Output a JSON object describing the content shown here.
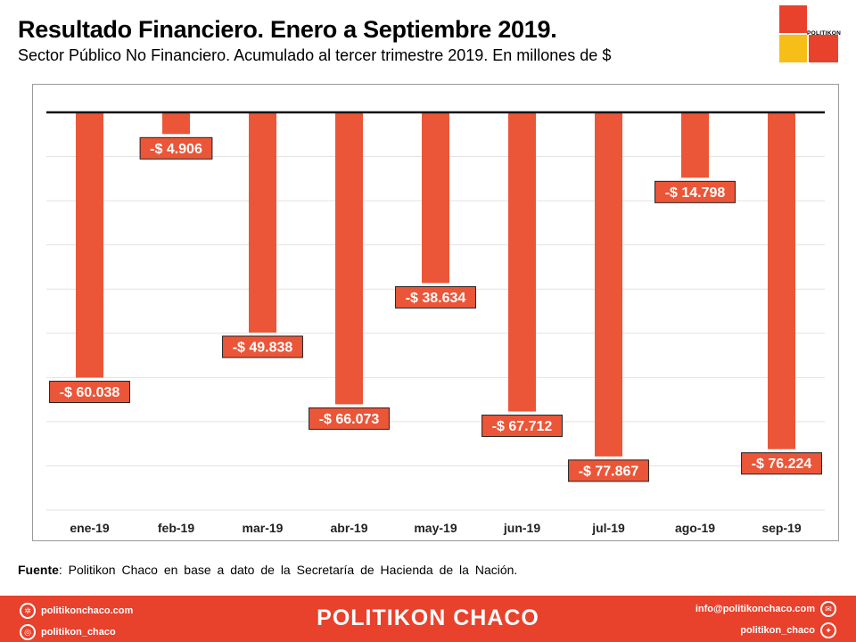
{
  "header": {
    "title": "Resultado Financiero. Enero a Septiembre 2019.",
    "subtitle": "Sector Público No Financiero. Acumulado  al tercer trimestre 2019. En millones de $"
  },
  "logo": {
    "text": "POLITIKON",
    "colors": {
      "red": "#e8412c",
      "yellow": "#f7be18"
    }
  },
  "chart_data": {
    "type": "bar",
    "categories": [
      "ene-19",
      "feb-19",
      "mar-19",
      "abr-19",
      "may-19",
      "jun-19",
      "jul-19",
      "ago-19",
      "sep-19"
    ],
    "values": [
      -60038,
      -4906,
      -49838,
      -66073,
      -38634,
      -67712,
      -77867,
      -14798,
      -76224
    ],
    "data_labels": [
      "-$ 60.038",
      "-$ 4.906",
      "-$ 49.838",
      "-$ 66.073",
      "-$ 38.634",
      "-$ 67.712",
      "-$ 77.867",
      "-$ 14.798",
      "-$ 76.224"
    ],
    "ylim": [
      -90000,
      0
    ],
    "grid": true,
    "bar_color": "#eb5638",
    "title": "",
    "xlabel": "",
    "ylabel": ""
  },
  "source": {
    "label": "Fuente",
    "text": ":  Politikon  Chaco  en  base  a  dato  de  la  Secretaría  de  Hacienda  de  la  Nación."
  },
  "footer": {
    "brand": "POLITIKON CHACO",
    "website": "politikonchaco.com",
    "instagram": "politikon_chaco",
    "email": "info@politikonchaco.com",
    "twitter": "politikon_chaco",
    "icons": {
      "website": "dribbble-icon",
      "instagram": "instagram-icon",
      "email": "mail-icon",
      "twitter": "twitter-icon"
    },
    "bg_color": "#e8412c"
  }
}
